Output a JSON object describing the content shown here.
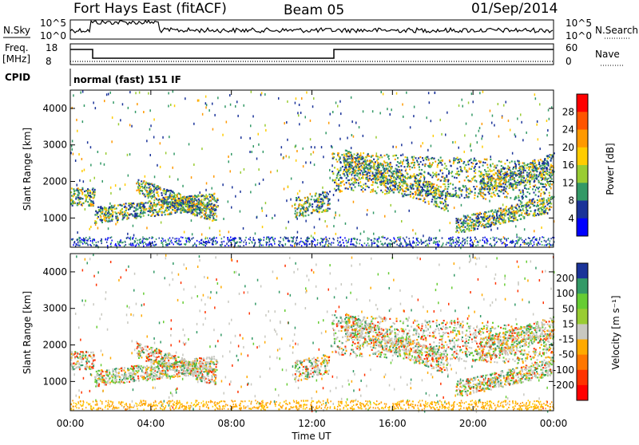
{
  "header": {
    "station": "Fort Hays East (fitACF)",
    "beam": "Beam 05",
    "date": "01/Sep/2014"
  },
  "top_panels": {
    "nsky_label": "N.Sky",
    "nsearch_label": "N.Search",
    "nsky_ticks": [
      "10^5",
      "10^0"
    ],
    "freq_label_1": "Freq.",
    "freq_label_2": "[MHz]",
    "freq_ticks": [
      "18",
      "8"
    ],
    "nave_label": "Nave",
    "nave_ticks": [
      "60",
      "0"
    ],
    "cpid_label": "CPID",
    "cpid_value": "normal (fast) 151 IF"
  },
  "chart_data": [
    {
      "type": "heatmap",
      "name": "power",
      "ylabel": "Slant Range [km]",
      "yticks": [
        1000,
        2000,
        3000,
        4000
      ],
      "ylim": [
        200,
        4500
      ],
      "xlabel": "",
      "colorbar_label": "Power [dB]",
      "colorbar_ticks": [
        "28",
        "24",
        "20",
        "16",
        "12",
        "8",
        "4"
      ],
      "colorbar_colors": [
        "#ff0000",
        "#ff5500",
        "#ff9900",
        "#ffcc00",
        "#99cc33",
        "#339966",
        "#1a3399",
        "#0000ff"
      ]
    },
    {
      "type": "heatmap",
      "name": "velocity",
      "ylabel": "Slant Range [km]",
      "yticks": [
        1000,
        2000,
        3000,
        4000
      ],
      "ylim": [
        200,
        4500
      ],
      "xlabel": "Time UT",
      "xticks": [
        "00:00",
        "04:00",
        "08:00",
        "12:00",
        "16:00",
        "20:00",
        "00:00"
      ],
      "colorbar_label": "Velocity [m s⁻¹]",
      "colorbar_ticks": [
        "200",
        "100",
        "50",
        "15",
        "-15",
        "-50",
        "-100",
        "-200"
      ],
      "colorbar_colors": [
        "#1a3399",
        "#339966",
        "#66cc33",
        "#99cc33",
        "#c8c8c0",
        "#ffaa00",
        "#ff7700",
        "#ff3300",
        "#ff0000"
      ]
    }
  ]
}
